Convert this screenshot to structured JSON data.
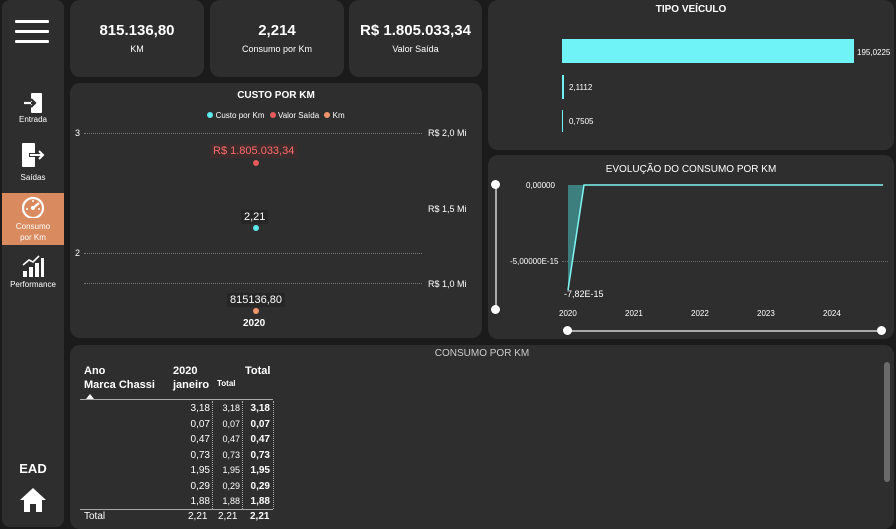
{
  "sidebar": {
    "menu_icon": "hamburger-menu-icon",
    "items": [
      {
        "label": "Entrada",
        "icon": "entrada-icon",
        "active": false
      },
      {
        "label": "Saídas",
        "icon": "saidas-icon",
        "active": false
      },
      {
        "label": "Consumo por Km",
        "icon": "gauge-icon",
        "active": true
      },
      {
        "label": "Performance",
        "icon": "bar-chart-icon",
        "active": false
      }
    ],
    "brand": "EAD",
    "home_icon": "home-icon"
  },
  "kpis": [
    {
      "value": "815.136,80",
      "caption": "KM"
    },
    {
      "value": "2,214",
      "caption": "Consumo por Km"
    },
    {
      "value": "R$ 1.805.033,34",
      "caption": "Valor Saída"
    }
  ],
  "colors": {
    "background": "#1b1b1b",
    "panel": "#2e2e2e",
    "custo_por_km": "#5ee8ee",
    "valor_saida": "#e55a5a",
    "km": "#f0946b",
    "accent": "#d98a5e",
    "bar": "#6ff3f6"
  },
  "tipo_veiculo": {
    "title": "TIPO VEÍCULO",
    "chart_data": {
      "type": "bar",
      "orientation": "horizontal",
      "values": [
        195.0225,
        2.1112,
        0.7505
      ],
      "labels": [
        "195,0225",
        "2,1112",
        "0,7505"
      ]
    }
  },
  "custo_por_km": {
    "title": "CUSTO POR KM",
    "legend": [
      "Custo por Km",
      "Valor Saída",
      "Km"
    ],
    "chart_data": {
      "type": "scatter",
      "x": [
        "2020"
      ],
      "left_axis_ticks": [
        "3",
        "2"
      ],
      "right_axis_ticks": [
        "R$ 2,0 Mi",
        "R$ 1,5 Mi",
        "R$ 1,0 Mi"
      ],
      "series": [
        {
          "name": "Valor Saída",
          "value": 1805033.34,
          "label": "R$ 1.805.033,34"
        },
        {
          "name": "Custo por Km",
          "value": 2.21,
          "label": "2,21"
        },
        {
          "name": "Km",
          "value": 815136.8,
          "label": "815136,80"
        }
      ]
    }
  },
  "evolucao": {
    "title": "EVOLUÇÃO DO CONSUMO POR KM",
    "chart_data": {
      "type": "area",
      "x": [
        "2020",
        "2021",
        "2022",
        "2023",
        "2024"
      ],
      "y_ticks": [
        "0,00000",
        "-5,00000E-15"
      ],
      "point_label": "-7,82E-15",
      "values": [
        -7.82e-15,
        0,
        0,
        0,
        0
      ]
    }
  },
  "consumo_matrix": {
    "title": "CONSUMO POR KM",
    "header": {
      "row_field_1": "Ano",
      "row_field_2": "Marca Chassi",
      "year": "2020",
      "month": "janeiro",
      "sub_total": "Total",
      "total": "Total"
    },
    "rows": [
      [
        "3,18",
        "3,18",
        "3,18"
      ],
      [
        "0,07",
        "0,07",
        "0,07"
      ],
      [
        "0,47",
        "0,47",
        "0,47"
      ],
      [
        "0,73",
        "0,73",
        "0,73"
      ],
      [
        "1,95",
        "1,95",
        "1,95"
      ],
      [
        "0,29",
        "0,29",
        "0,29"
      ],
      [
        "1,88",
        "1,88",
        "1,88"
      ]
    ],
    "total_row": {
      "label": "Total",
      "values": [
        "2,21",
        "2,21",
        "2,21"
      ]
    }
  }
}
